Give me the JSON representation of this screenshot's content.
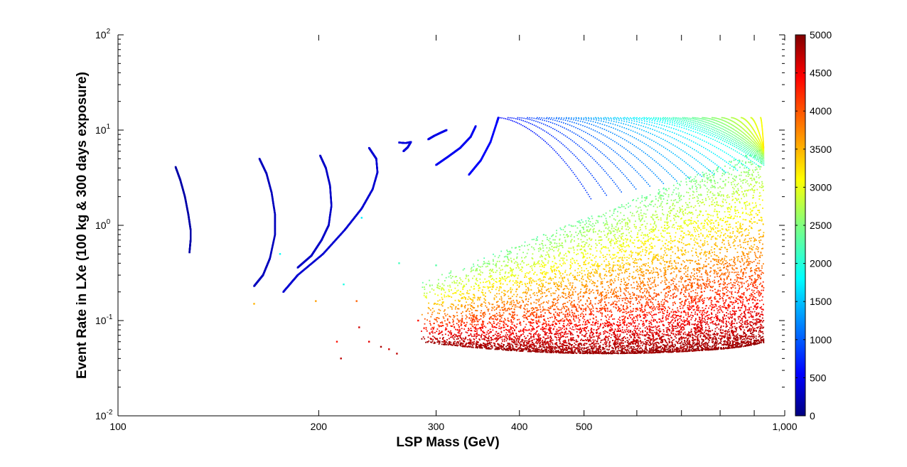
{
  "chart_data": {
    "type": "scatter",
    "xlabel": "LSP Mass (GeV)",
    "ylabel": "Event Rate in LXe (100 kg & 300 days exposure)",
    "xscale": "log",
    "yscale": "log",
    "xlim": [
      100,
      1000
    ],
    "ylim": [
      0.01,
      100
    ],
    "x_tick_labels": [
      "100",
      "200",
      "300",
      "400",
      "500",
      "1,000"
    ],
    "y_tick_labels": [
      {
        "base": "10",
        "exp": "-2"
      },
      {
        "base": "10",
        "exp": "-1"
      },
      {
        "base": "10",
        "exp": "0"
      },
      {
        "base": "10",
        "exp": "1"
      },
      {
        "base": "10",
        "exp": "2"
      }
    ],
    "grid": false,
    "colorbar": {
      "position": "right",
      "colormap": "jet",
      "range": [
        0,
        5000
      ],
      "tick_labels": [
        "0",
        "500",
        "1000",
        "1500",
        "2000",
        "2500",
        "3000",
        "3500",
        "4000",
        "4500",
        "5000"
      ]
    },
    "series": [
      {
        "kind": "curve",
        "c": 200,
        "points": [
          [
            122,
            4.1
          ],
          [
            124,
            3.0
          ],
          [
            126,
            2.0
          ],
          [
            127.5,
            1.3
          ],
          [
            128.5,
            0.9
          ],
          [
            128.5,
            0.7
          ],
          [
            128,
            0.52
          ]
        ]
      },
      {
        "kind": "curve",
        "c": 300,
        "points": [
          [
            163,
            5.0
          ],
          [
            167,
            3.5
          ],
          [
            170,
            2.2
          ],
          [
            172,
            1.3
          ],
          [
            172,
            0.8
          ],
          [
            169,
            0.45
          ],
          [
            165,
            0.3
          ],
          [
            160,
            0.23
          ]
        ]
      },
      {
        "kind": "curve",
        "c": 350,
        "points": [
          [
            201,
            5.4
          ],
          [
            205,
            4.0
          ],
          [
            208,
            2.6
          ],
          [
            209,
            1.6
          ],
          [
            207,
            1.0
          ],
          [
            202,
            0.7
          ],
          [
            195,
            0.48
          ],
          [
            186,
            0.36
          ]
        ]
      },
      {
        "kind": "curve",
        "c": 400,
        "points": [
          [
            238,
            6.5
          ],
          [
            244,
            5.0
          ],
          [
            245,
            3.6
          ],
          [
            241,
            2.4
          ],
          [
            232,
            1.5
          ],
          [
            219,
            0.9
          ],
          [
            203,
            0.5
          ],
          [
            186,
            0.3
          ],
          [
            177,
            0.2
          ]
        ]
      },
      {
        "kind": "curve",
        "c": 450,
        "points": [
          [
            264,
            7.4
          ],
          [
            270,
            7.3
          ],
          [
            275,
            7.5
          ],
          [
            272,
            6.6
          ],
          [
            268,
            6.0
          ]
        ]
      },
      {
        "kind": "curve",
        "c": 500,
        "points": [
          [
            292,
            8.0
          ],
          [
            298,
            8.7
          ],
          [
            306,
            9.5
          ],
          [
            311,
            10.0
          ]
        ]
      },
      {
        "kind": "curve",
        "c": 550,
        "points": [
          [
            300,
            4.3
          ],
          [
            312,
            5.2
          ],
          [
            326,
            6.5
          ],
          [
            338,
            8.5
          ],
          [
            344,
            11.0
          ]
        ]
      },
      {
        "kind": "curve",
        "c": 600,
        "points": [
          [
            336,
            3.4
          ],
          [
            350,
            4.8
          ],
          [
            362,
            7.5
          ],
          [
            370,
            12.0
          ],
          [
            372,
            13.5
          ]
        ]
      }
    ],
    "families": [
      {
        "kind": "arc-family",
        "x_start": 372,
        "x_end": 920,
        "count": 28,
        "cmin": 650,
        "cmax": 3000,
        "y_top": 13.5,
        "y_bottom_min": 1.9,
        "y_bottom_max": 6.5
      }
    ],
    "regions": [
      {
        "kind": "dense-band",
        "x_min": 285,
        "x_max": 930,
        "y_lower": 0.045,
        "y_upper_max": 6.5,
        "cmin": 2500,
        "cmax": 5000,
        "note": "colour increases toward lower edge"
      }
    ],
    "outliers": [
      [
        [
          175,
          0.5
        ],
        1900
      ],
      [
        [
          160,
          0.15
        ],
        3500
      ],
      [
        [
          198,
          0.16
        ],
        3600
      ],
      [
        [
          218,
          0.24
        ],
        2000
      ],
      [
        [
          232,
          1.2
        ],
        1800
      ],
      [
        [
          264,
          0.4
        ],
        2200
      ],
      [
        [
          300,
          0.38
        ],
        2300
      ],
      [
        [
          228,
          0.16
        ],
        3900
      ],
      [
        [
          213,
          0.06
        ],
        4300
      ],
      [
        [
          230,
          0.085
        ],
        4600
      ],
      [
        [
          238,
          0.06
        ],
        4500
      ],
      [
        [
          248,
          0.053
        ],
        4800
      ],
      [
        [
          216,
          0.04
        ],
        4700
      ],
      [
        [
          262,
          0.045
        ],
        4700
      ],
      [
        [
          255,
          0.05
        ],
        4600
      ],
      [
        [
          282,
          0.1
        ],
        4300
      ]
    ]
  }
}
